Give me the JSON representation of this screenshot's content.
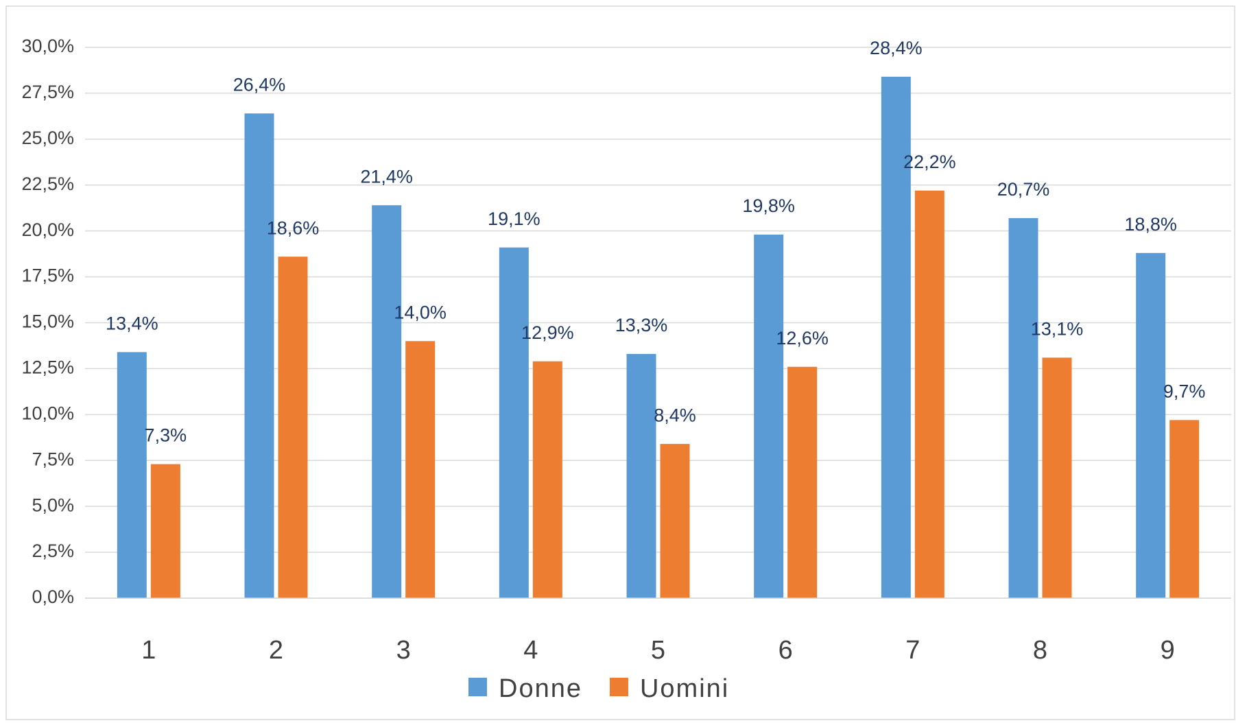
{
  "chart_data": {
    "type": "bar",
    "categories": [
      "1",
      "2",
      "3",
      "4",
      "5",
      "6",
      "7",
      "8",
      "9"
    ],
    "series": [
      {
        "name": "Donne",
        "color": "#5b9bd5",
        "values": [
          13.4,
          26.4,
          21.4,
          19.1,
          13.3,
          19.8,
          28.4,
          20.7,
          18.8
        ],
        "value_labels": [
          "13,4%",
          "26,4%",
          "21,4%",
          "19,1%",
          "13,3%",
          "19,8%",
          "28,4%",
          "20,7%",
          "18,8%"
        ]
      },
      {
        "name": "Uomini",
        "color": "#ed7d31",
        "values": [
          7.3,
          18.6,
          14.0,
          12.9,
          8.4,
          12.6,
          22.2,
          13.1,
          9.7
        ],
        "value_labels": [
          "7,3%",
          "18,6%",
          "14,0%",
          "12,9%",
          "8,4%",
          "12,6%",
          "22,2%",
          "13,1%",
          "9,7%"
        ]
      }
    ],
    "ylim": [
      0,
      30
    ],
    "yticks": [
      {
        "value": 0,
        "label": "0,0%"
      },
      {
        "value": 2.5,
        "label": "2,5%"
      },
      {
        "value": 5,
        "label": "5,0%"
      },
      {
        "value": 7.5,
        "label": "7,5%"
      },
      {
        "value": 10,
        "label": "10,0%"
      },
      {
        "value": 12.5,
        "label": "12,5%"
      },
      {
        "value": 15,
        "label": "15,0%"
      },
      {
        "value": 17.5,
        "label": "17,5%"
      },
      {
        "value": 20,
        "label": "20,0%"
      },
      {
        "value": 22.5,
        "label": "22,5%"
      },
      {
        "value": 25,
        "label": "25,0%"
      },
      {
        "value": 27.5,
        "label": "27,5%"
      },
      {
        "value": 30,
        "label": "30,0%"
      }
    ],
    "grid": true,
    "legend": "bottom"
  }
}
